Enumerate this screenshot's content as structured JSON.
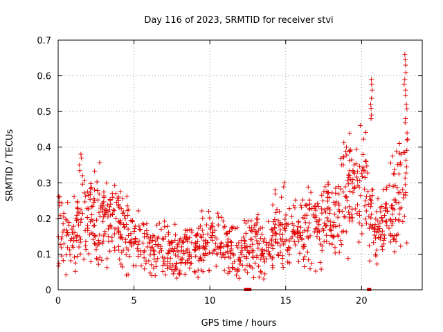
{
  "chart_data": {
    "type": "scatter",
    "title": "Day 116 of 2023, SRMTID for receiver stvi",
    "xlabel": "GPS time / hours",
    "ylabel": "SRMTID / TECUs",
    "xlim": [
      0,
      24
    ],
    "ylim": [
      0,
      0.7
    ],
    "xticks": [
      "0",
      "5",
      "10",
      "15",
      "20"
    ],
    "yticks": [
      "0",
      "0.1",
      "0.2",
      "0.3",
      "0.4",
      "0.5",
      "0.6",
      "0.7"
    ],
    "grid": true,
    "marker": "plus",
    "marker_color": "#e00000",
    "series": [
      {
        "name": "SRMTID",
        "trend": {
          "x": [
            0,
            0.5,
            1,
            1.5,
            2,
            2.5,
            3,
            3.5,
            4,
            4.5,
            5,
            5.5,
            6,
            6.5,
            7,
            7.5,
            8,
            8.5,
            9,
            9.5,
            10,
            10.5,
            11,
            11.5,
            12,
            12.5,
            13,
            13.5,
            14,
            14.5,
            15,
            15.5,
            16,
            16.5,
            17,
            17.5,
            18,
            18.5,
            19,
            19.5,
            20,
            20.4,
            20.8,
            21.2,
            21.6,
            22,
            22.5,
            23
          ],
          "y": [
            0.16,
            0.14,
            0.15,
            0.19,
            0.21,
            0.2,
            0.19,
            0.18,
            0.17,
            0.16,
            0.13,
            0.12,
            0.11,
            0.11,
            0.1,
            0.09,
            0.09,
            0.1,
            0.12,
            0.12,
            0.13,
            0.13,
            0.12,
            0.12,
            0.11,
            0.13,
            0.13,
            0.11,
            0.13,
            0.15,
            0.15,
            0.15,
            0.16,
            0.17,
            0.18,
            0.19,
            0.2,
            0.23,
            0.28,
            0.29,
            0.27,
            0.27,
            0.14,
            0.17,
            0.2,
            0.23,
            0.27,
            0.3
          ]
        },
        "spikes": [
          {
            "x": 0.1,
            "y": 0.26
          },
          {
            "x": 1.5,
            "y": 0.38
          },
          {
            "x": 1.4,
            "y": 0.35
          },
          {
            "x": 1.6,
            "y": 0.32
          },
          {
            "x": 2.4,
            "y": 0.28
          },
          {
            "x": 3.8,
            "y": 0.27
          },
          {
            "x": 4.0,
            "y": 0.26
          },
          {
            "x": 14.3,
            "y": 0.28
          },
          {
            "x": 14.9,
            "y": 0.3
          },
          {
            "x": 17.8,
            "y": 0.3
          },
          {
            "x": 18.5,
            "y": 0.29
          },
          {
            "x": 19.0,
            "y": 0.4
          },
          {
            "x": 19.2,
            "y": 0.39
          },
          {
            "x": 18.8,
            "y": 0.37
          },
          {
            "x": 19.5,
            "y": 0.35
          },
          {
            "x": 20.3,
            "y": 0.36
          },
          {
            "x": 20.65,
            "y": 0.59
          },
          {
            "x": 20.7,
            "y": 0.56
          },
          {
            "x": 20.6,
            "y": 0.52
          },
          {
            "x": 20.65,
            "y": 0.49
          },
          {
            "x": 22.5,
            "y": 0.41
          },
          {
            "x": 22.6,
            "y": 0.38
          },
          {
            "x": 22.85,
            "y": 0.66
          },
          {
            "x": 22.9,
            "y": 0.63
          },
          {
            "x": 22.85,
            "y": 0.59
          },
          {
            "x": 22.9,
            "y": 0.56
          },
          {
            "x": 22.95,
            "y": 0.52
          },
          {
            "x": 22.9,
            "y": 0.48
          },
          {
            "x": 23.0,
            "y": 0.44
          },
          {
            "x": 23.0,
            "y": 0.42
          }
        ],
        "zero_points": [
          {
            "x": 12.4,
            "y": 0
          },
          {
            "x": 12.6,
            "y": 0
          },
          {
            "x": 20.5,
            "y": 0
          }
        ]
      }
    ]
  }
}
